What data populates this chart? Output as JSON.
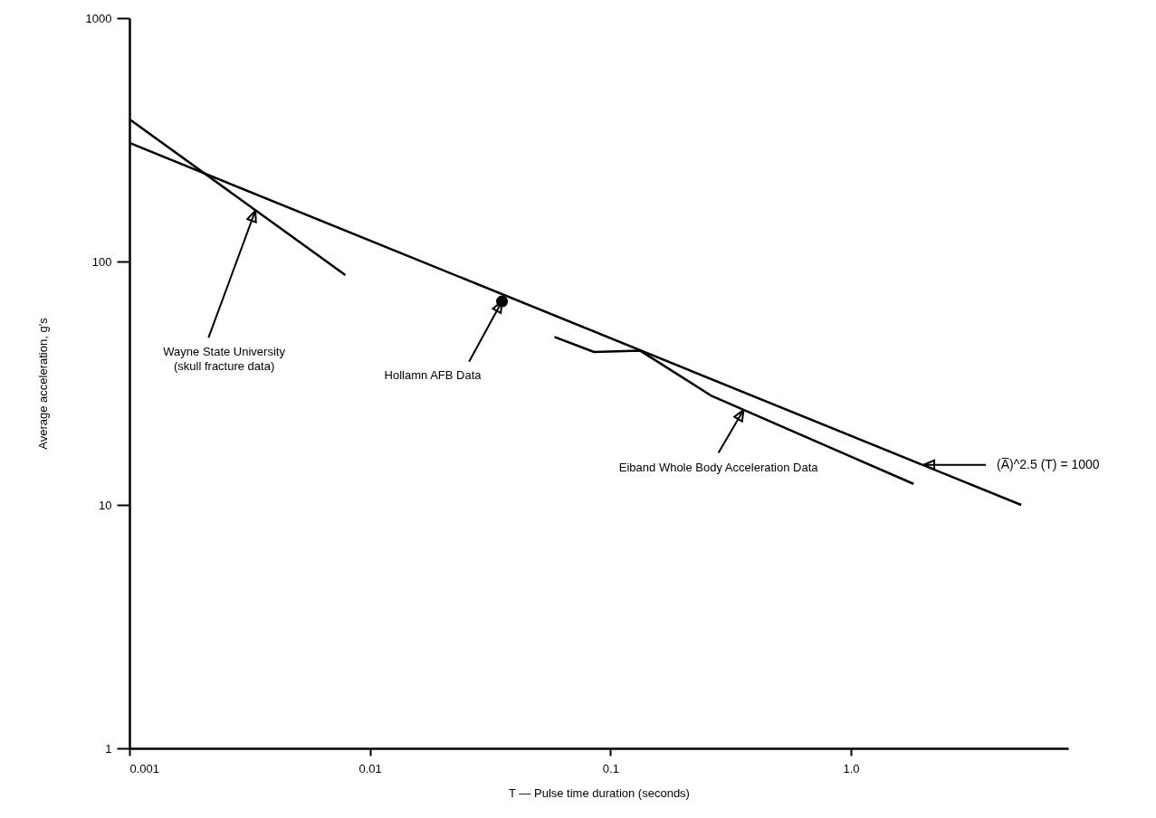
{
  "chart_data": {
    "type": "line",
    "xlabel": "T — Pulse time duration (seconds)",
    "ylabel": "Average acceleration, g's",
    "log": "xy",
    "xlim": [
      0.001,
      8
    ],
    "xticks": [
      0.001,
      0.01,
      0.1,
      {
        "value": 1,
        "label": "1.0"
      }
    ],
    "ylim": [
      1,
      1000
    ],
    "yticks": [
      1,
      10,
      100,
      1000
    ],
    "line_style": "solid",
    "series": [
      {
        "color": "#000000",
        "x": [
          0.001,
          5.1
        ],
        "values": [
          307,
          10
        ]
      },
      {
        "color": "#000000",
        "x": [
          0.001,
          0.0079
        ],
        "values": [
          384,
          88
        ]
      },
      {
        "color": "#000000",
        "x": [
          0.0585,
          0.0855,
          0.133,
          0.264,
          1.82
        ],
        "values": [
          49,
          42.5,
          43,
          28,
          12.2
        ]
      },
      {
        "type": "scatter",
        "marker": "circle",
        "color": "#000000",
        "x": [
          0.0354
        ],
        "values": [
          68.6
        ]
      }
    ],
    "annotations": [
      {
        "text": "Wayne State University\n(skull fracture data)",
        "x": 0.00334,
        "y": 162
      },
      {
        "text": "Hollamn AFB Data",
        "x": 0.0354,
        "y": 68.6
      },
      {
        "text": "Eiband Whole Body Acceleration Data",
        "x": 0.358,
        "y": 24.6
      },
      {
        "text": "(A̅)^2.5 (T) = 1000",
        "x": 2.0,
        "y": 14.6
      }
    ]
  }
}
